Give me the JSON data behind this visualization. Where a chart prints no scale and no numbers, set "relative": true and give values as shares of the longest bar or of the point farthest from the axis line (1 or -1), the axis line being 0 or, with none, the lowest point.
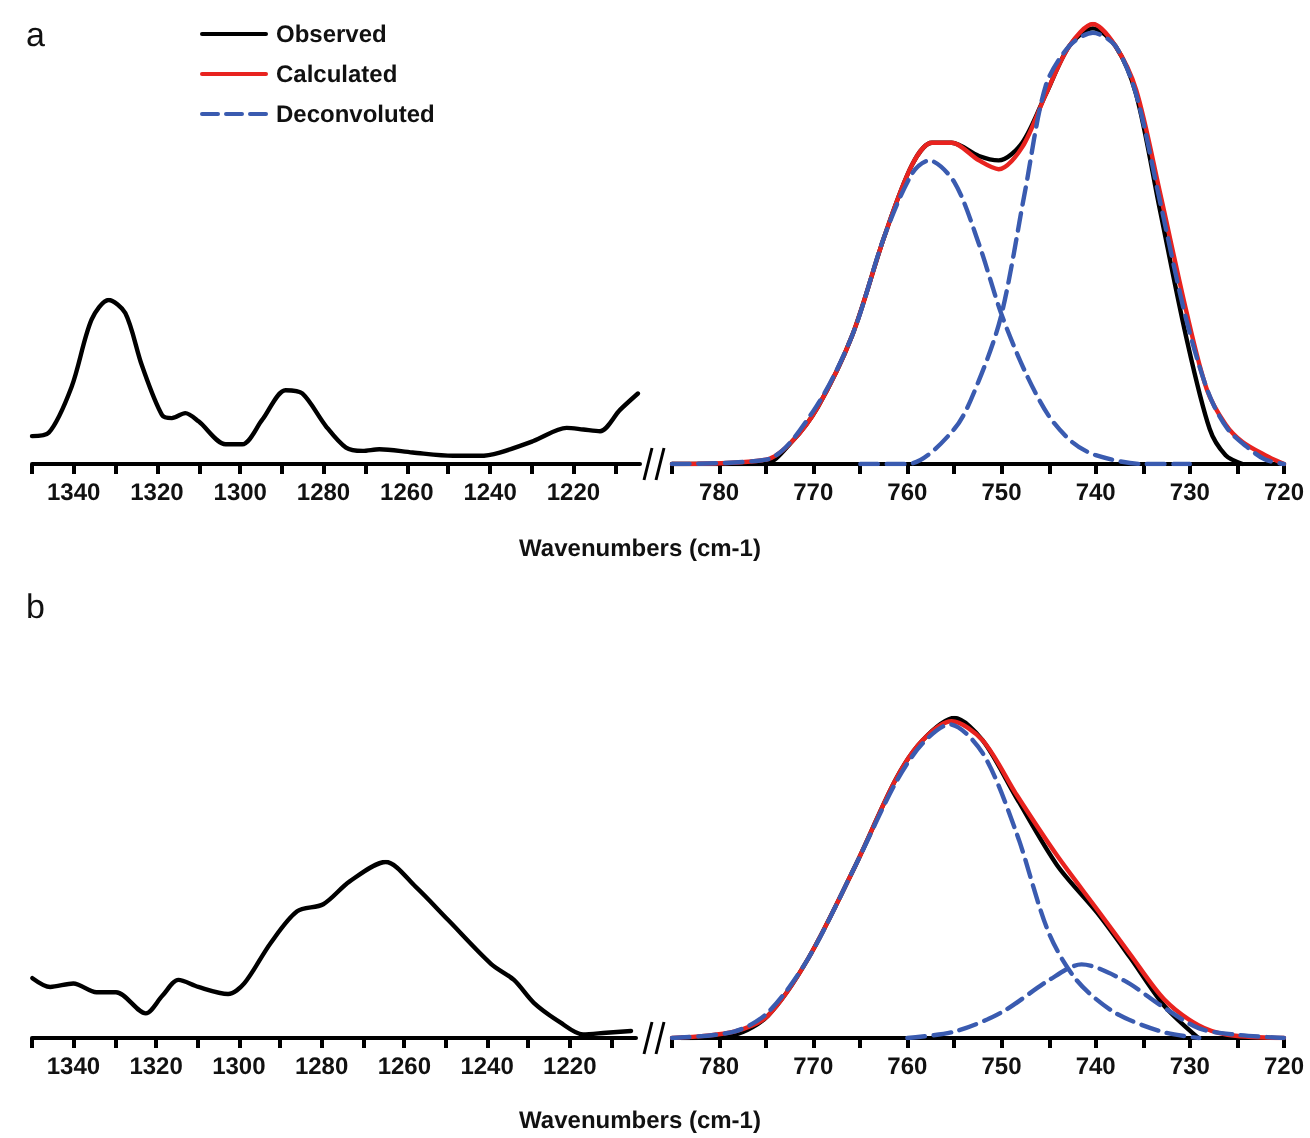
{
  "chart_data": [
    {
      "type": "line",
      "title": "a",
      "xlabel": "Wavenumbers (cm-1)",
      "relative": true,
      "marker": "none",
      "line_style": "solid",
      "legend": false,
      "xlim": [
        1350,
        1204
      ],
      "xticks": [
        {
          "value": 1350,
          "label": null
        },
        1340,
        {
          "value": 1330,
          "label": null
        },
        1320,
        {
          "value": 1310,
          "label": null
        },
        1300,
        {
          "value": 1290,
          "label": null
        },
        1280,
        {
          "value": 1270,
          "label": null
        },
        1260,
        {
          "value": 1250,
          "label": null
        },
        1240,
        {
          "value": 1230,
          "label": null
        },
        1220,
        {
          "value": 1210,
          "label": null
        }
      ],
      "series": [
        {
          "color": "#000000",
          "x": [
            1350,
            1346,
            1340.5,
            1335.7,
            1331.6,
            1327.6,
            1323.6,
            1318.8,
            1316.4,
            1313.2,
            1310,
            1303.5,
            1299.5,
            1294.7,
            1289.1,
            1285.1,
            1279.4,
            1274.6,
            1270.6,
            1266.6,
            1258.6,
            1248.9,
            1242.5,
            1237.7,
            1229.6,
            1221.6,
            1217.6,
            1213.6,
            1208.8,
            1204.5
          ],
          "values": [
            0.17,
            0.19,
            0.47,
            0.88,
            1.0,
            0.92,
            0.6,
            0.3,
            0.28,
            0.31,
            0.26,
            0.12,
            0.12,
            0.27,
            0.45,
            0.43,
            0.23,
            0.1,
            0.08,
            0.09,
            0.07,
            0.05,
            0.05,
            0.07,
            0.14,
            0.22,
            0.21,
            0.2,
            0.33,
            0.43
          ]
        }
      ]
    },
    {
      "type": "line",
      "relative": true,
      "marker": "none",
      "line_style": "solid",
      "legend": "top left",
      "xlim": [
        785,
        720
      ],
      "xticks": [
        {
          "value": 785,
          "label": null
        },
        780,
        {
          "value": 775,
          "label": null
        },
        770,
        {
          "value": 765,
          "label": null
        },
        760,
        {
          "value": 755,
          "label": null
        },
        750,
        {
          "value": 745,
          "label": null
        },
        740,
        {
          "value": 735,
          "label": null
        },
        730,
        {
          "value": 725,
          "label": null
        },
        720
      ],
      "series": [
        {
          "name": "Observed",
          "color": "#000000",
          "x": [
            785,
            775.2,
            772.3,
            769.5,
            765.9,
            762.4,
            759.5,
            757.4,
            755.3,
            752.4,
            750.3,
            747.8,
            745.3,
            742.8,
            740.3,
            737.9,
            735.7,
            733.2,
            730.4,
            727.9,
            726.2,
            724.4
          ],
          "values": [
            0,
            0,
            0.05,
            0.13,
            0.29,
            0.52,
            0.68,
            0.73,
            0.73,
            0.7,
            0.69,
            0.73,
            0.84,
            0.95,
            0.99,
            0.95,
            0.84,
            0.58,
            0.29,
            0.08,
            0.02,
            0
          ]
        },
        {
          "name": "Calculated",
          "color": "#e8231f",
          "x": [
            785,
            775,
            772.3,
            769.5,
            765.9,
            762.4,
            759.5,
            757.4,
            755.3,
            752.4,
            750.3,
            747.8,
            745.3,
            742.8,
            740.3,
            737.9,
            735.7,
            733.2,
            730.4,
            728.2,
            726.2,
            724.4,
            722,
            720
          ],
          "values": [
            0,
            0.01,
            0.05,
            0.13,
            0.29,
            0.52,
            0.68,
            0.73,
            0.73,
            0.69,
            0.67,
            0.72,
            0.84,
            0.95,
            1.0,
            0.95,
            0.85,
            0.62,
            0.35,
            0.17,
            0.09,
            0.05,
            0.02,
            0
          ]
        },
        {
          "name": "Deconvoluted",
          "color": "#3a5bb0",
          "line_style": "dashed",
          "x": [
            785,
            775,
            770,
            765.9,
            762.4,
            759.5,
            757.7,
            755,
            752.4,
            750,
            747.5,
            745,
            742.5,
            740,
            735,
            730
          ],
          "values": [
            0,
            0.01,
            0.12,
            0.29,
            0.52,
            0.66,
            0.69,
            0.64,
            0.5,
            0.34,
            0.21,
            0.11,
            0.05,
            0.02,
            0,
            0
          ]
        },
        {
          "color": "#3a5bb0",
          "line_style": "dashed",
          "x": [
            765,
            760,
            755,
            752.4,
            750,
            747.5,
            745.3,
            742.8,
            740.3,
            737.9,
            735.7,
            733.2,
            730.4,
            728,
            726,
            724,
            722,
            720
          ],
          "values": [
            0,
            0,
            0.08,
            0.19,
            0.34,
            0.62,
            0.86,
            0.95,
            0.98,
            0.95,
            0.84,
            0.6,
            0.33,
            0.16,
            0.08,
            0.04,
            0.01,
            0
          ]
        }
      ]
    },
    {
      "type": "line",
      "title": "b",
      "xlabel": "Wavenumbers (cm-1)",
      "relative": true,
      "marker": "none",
      "line_style": "solid",
      "legend": false,
      "xlim": [
        1350,
        1204
      ],
      "xticks": [
        {
          "value": 1350,
          "label": null
        },
        1340,
        {
          "value": 1330,
          "label": null
        },
        1320,
        {
          "value": 1310,
          "label": null
        },
        1300,
        {
          "value": 1290,
          "label": null
        },
        1280,
        {
          "value": 1270,
          "label": null
        },
        1260,
        {
          "value": 1250,
          "label": null
        },
        1240,
        {
          "value": 1230,
          "label": null
        },
        1220,
        {
          "value": 1210,
          "label": null
        }
      ],
      "series": [
        {
          "color": "#000000",
          "x": [
            1349.9,
            1345.6,
            1340,
            1334.4,
            1329.7,
            1322.5,
            1318.5,
            1314.6,
            1309.8,
            1302.6,
            1298.7,
            1292.3,
            1285.9,
            1279.6,
            1273.2,
            1264.5,
            1257.3,
            1249.4,
            1239,
            1233.5,
            1228.7,
            1222.4,
            1216.8,
            1211.2,
            1205.2
          ],
          "values": [
            0.34,
            0.29,
            0.31,
            0.26,
            0.26,
            0.14,
            0.24,
            0.33,
            0.29,
            0.25,
            0.31,
            0.54,
            0.72,
            0.76,
            0.89,
            1.0,
            0.86,
            0.67,
            0.42,
            0.33,
            0.2,
            0.09,
            0.02,
            0.03,
            0.04
          ]
        }
      ]
    },
    {
      "type": "line",
      "relative": true,
      "marker": "none",
      "line_style": "solid",
      "legend": false,
      "xlim": [
        785,
        720
      ],
      "xticks": [
        {
          "value": 785,
          "label": null
        },
        780,
        {
          "value": 775,
          "label": null
        },
        770,
        {
          "value": 765,
          "label": null
        },
        760,
        {
          "value": 755,
          "label": null
        },
        750,
        {
          "value": 745,
          "label": null
        },
        740,
        {
          "value": 735,
          "label": null
        },
        730,
        {
          "value": 725,
          "label": null
        },
        720
      ],
      "series": [
        {
          "color": "#000000",
          "x": [
            784,
            778.4,
            774.8,
            770.5,
            765.5,
            761.2,
            758.4,
            755,
            752,
            748.4,
            744.1,
            739.8,
            736.3,
            732.7,
            729.1
          ],
          "values": [
            0,
            0.01,
            0.07,
            0.25,
            0.54,
            0.81,
            0.93,
            1.0,
            0.93,
            0.75,
            0.54,
            0.39,
            0.25,
            0.1,
            0
          ]
        },
        {
          "color": "#e8231f",
          "x": [
            785,
            778.4,
            774.8,
            770.5,
            765.5,
            761.2,
            758.4,
            755.3,
            752,
            748.4,
            744.1,
            739.8,
            736.3,
            732.7,
            729.1,
            726,
            720
          ],
          "values": [
            0,
            0.02,
            0.07,
            0.25,
            0.54,
            0.81,
            0.93,
            0.99,
            0.93,
            0.76,
            0.57,
            0.4,
            0.26,
            0.12,
            0.04,
            0.01,
            0
          ]
        },
        {
          "color": "#3a5bb0",
          "line_style": "dashed",
          "x": [
            785,
            778.4,
            774.8,
            770.5,
            765.5,
            761.2,
            758.4,
            755.5,
            752,
            748.4,
            745,
            742,
            738,
            733,
            729
          ],
          "values": [
            0,
            0.02,
            0.08,
            0.25,
            0.54,
            0.8,
            0.92,
            0.98,
            0.89,
            0.64,
            0.33,
            0.18,
            0.08,
            0.02,
            0
          ]
        },
        {
          "color": "#3a5bb0",
          "line_style": "dashed",
          "x": [
            760,
            755,
            750,
            745,
            741.5,
            737,
            733,
            729,
            725,
            720
          ],
          "values": [
            0,
            0.02,
            0.08,
            0.18,
            0.23,
            0.18,
            0.1,
            0.03,
            0.01,
            0
          ]
        }
      ]
    }
  ]
}
